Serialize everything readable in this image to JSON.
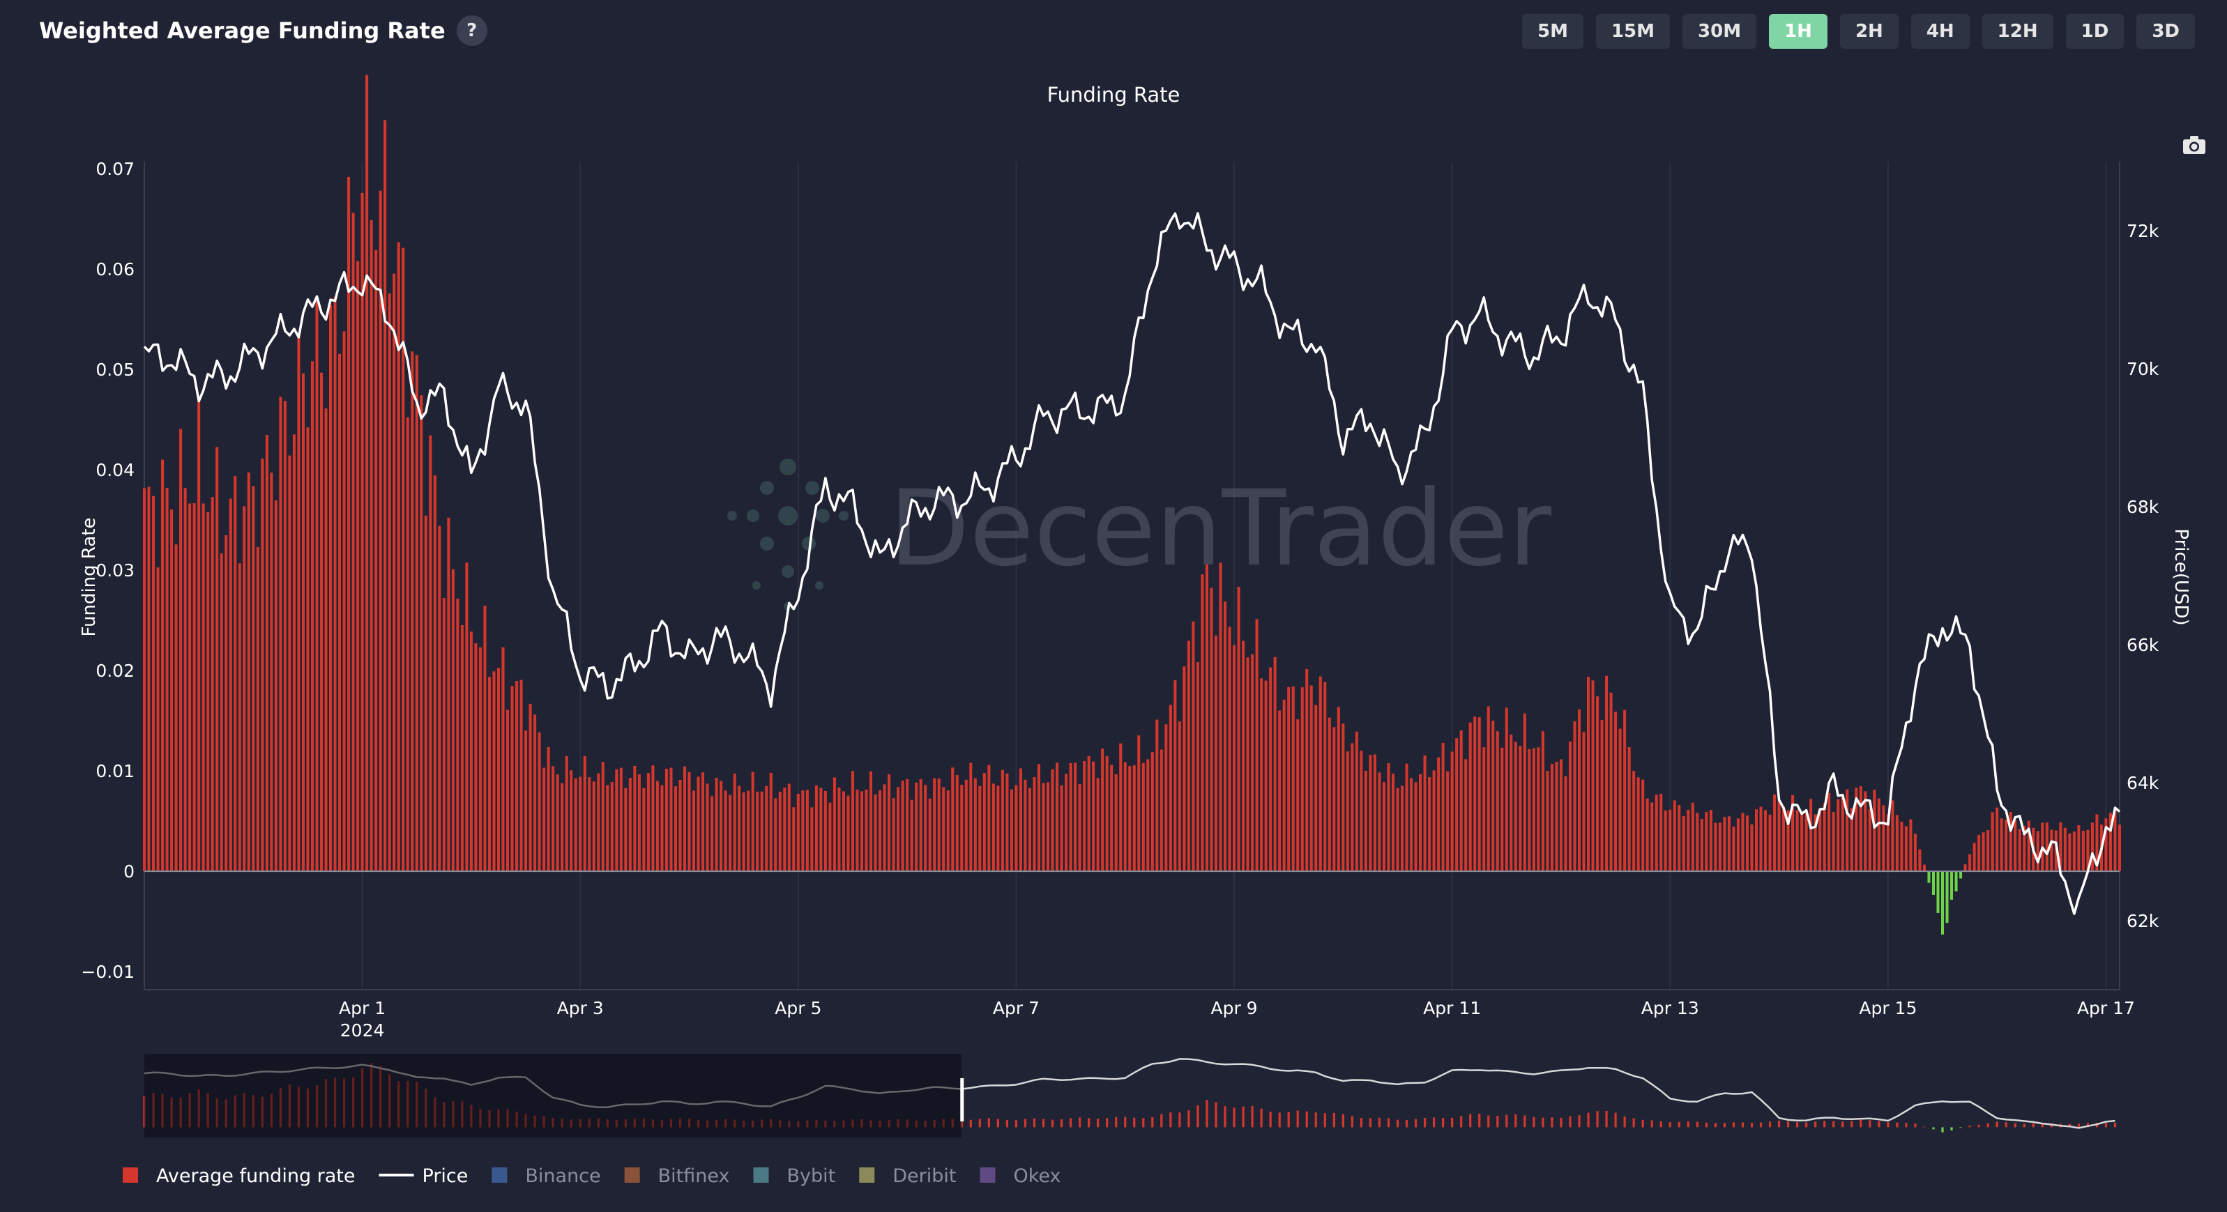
{
  "header": {
    "title": "Weighted Average Funding Rate",
    "help_label": "?"
  },
  "timeframes": [
    {
      "label": "5M",
      "active": false
    },
    {
      "label": "15M",
      "active": false
    },
    {
      "label": "30M",
      "active": false
    },
    {
      "label": "1H",
      "active": true
    },
    {
      "label": "2H",
      "active": false
    },
    {
      "label": "4H",
      "active": false
    },
    {
      "label": "12H",
      "active": false
    },
    {
      "label": "1D",
      "active": false
    },
    {
      "label": "3D",
      "active": false
    }
  ],
  "watermark": "DecenTrader",
  "colors": {
    "bar": "#d6372c",
    "bar_negative": "#6fd34a",
    "price": "#ffffff",
    "background": "#1f2333"
  },
  "chart_data": {
    "type": "bar",
    "title": "Funding Rate",
    "ylabel": "Funding Rate",
    "y2label": "Price(USD)",
    "ylim": [
      -0.0118,
      0.0707
    ],
    "y2lim": [
      61000,
      73000
    ],
    "y_ticks": [
      {
        "value": 0.07,
        "label": "0.07"
      },
      {
        "value": 0.06,
        "label": "0.06"
      },
      {
        "value": 0.05,
        "label": "0.05"
      },
      {
        "value": 0.04,
        "label": "0.04"
      },
      {
        "value": 0.03,
        "label": "0.03"
      },
      {
        "value": 0.02,
        "label": "0.02"
      },
      {
        "value": 0.01,
        "label": "0.01"
      },
      {
        "value": 0,
        "label": "0"
      },
      {
        "value": -0.01,
        "label": "−0.01"
      }
    ],
    "y2_ticks": [
      {
        "value": 72000,
        "label": "72k"
      },
      {
        "value": 70000,
        "label": "70k"
      },
      {
        "value": 68000,
        "label": "68k"
      },
      {
        "value": 66000,
        "label": "66k"
      },
      {
        "value": 64000,
        "label": "64k"
      },
      {
        "value": 62000,
        "label": "62k"
      }
    ],
    "x_range": [
      "2024-03-30 00:00",
      "2024-04-17 03:00"
    ],
    "x_ticks": [
      {
        "date": "2024-04-01",
        "label": "Apr 1",
        "sublabel": "2024"
      },
      {
        "date": "2024-04-03",
        "label": "Apr 3"
      },
      {
        "date": "2024-04-05",
        "label": "Apr 5"
      },
      {
        "date": "2024-04-07",
        "label": "Apr 7"
      },
      {
        "date": "2024-04-09",
        "label": "Apr 9"
      },
      {
        "date": "2024-04-11",
        "label": "Apr 11"
      },
      {
        "date": "2024-04-13",
        "label": "Apr 13"
      },
      {
        "date": "2024-04-15",
        "label": "Apr 15"
      },
      {
        "date": "2024-04-17",
        "label": "Apr 17"
      }
    ],
    "funding_series": {
      "name": "Average funding rate",
      "points": [
        [
          "2024-03-30 00:00",
          0.036
        ],
        [
          "2024-03-30 06:00",
          0.037
        ],
        [
          "2024-03-30 12:00",
          0.04
        ],
        [
          "2024-03-30 18:00",
          0.035
        ],
        [
          "2024-03-31 00:00",
          0.037
        ],
        [
          "2024-03-31 06:00",
          0.043
        ],
        [
          "2024-03-31 12:00",
          0.05
        ],
        [
          "2024-03-31 18:00",
          0.053
        ],
        [
          "2024-04-01 00:00",
          0.07
        ],
        [
          "2024-04-01 06:00",
          0.065
        ],
        [
          "2024-04-01 12:00",
          0.048
        ],
        [
          "2024-04-01 18:00",
          0.032
        ],
        [
          "2024-04-02 00:00",
          0.025
        ],
        [
          "2024-04-02 06:00",
          0.02
        ],
        [
          "2024-04-02 12:00",
          0.017
        ],
        [
          "2024-04-02 18:00",
          0.01
        ],
        [
          "2024-04-03 00:00",
          0.01
        ],
        [
          "2024-04-03 06:00",
          0.0095
        ],
        [
          "2024-04-03 12:00",
          0.0095
        ],
        [
          "2024-04-03 18:00",
          0.0095
        ],
        [
          "2024-04-04 00:00",
          0.0095
        ],
        [
          "2024-04-04 06:00",
          0.0085
        ],
        [
          "2024-04-04 12:00",
          0.0085
        ],
        [
          "2024-04-04 18:00",
          0.0085
        ],
        [
          "2024-04-05 00:00",
          0.0075
        ],
        [
          "2024-04-05 06:00",
          0.008
        ],
        [
          "2024-04-05 12:00",
          0.0085
        ],
        [
          "2024-04-05 18:00",
          0.0085
        ],
        [
          "2024-04-06 00:00",
          0.0085
        ],
        [
          "2024-04-06 06:00",
          0.0085
        ],
        [
          "2024-04-06 12:00",
          0.0095
        ],
        [
          "2024-04-06 18:00",
          0.0095
        ],
        [
          "2024-04-07 00:00",
          0.009
        ],
        [
          "2024-04-07 06:00",
          0.0095
        ],
        [
          "2024-04-07 12:00",
          0.01
        ],
        [
          "2024-04-07 18:00",
          0.011
        ],
        [
          "2024-04-08 00:00",
          0.011
        ],
        [
          "2024-04-08 06:00",
          0.012
        ],
        [
          "2024-04-08 12:00",
          0.018
        ],
        [
          "2024-04-08 18:00",
          0.029
        ],
        [
          "2024-04-09 00:00",
          0.025
        ],
        [
          "2024-04-09 06:00",
          0.021
        ],
        [
          "2024-04-09 12:00",
          0.017
        ],
        [
          "2024-04-09 18:00",
          0.019
        ],
        [
          "2024-04-10 00:00",
          0.014
        ],
        [
          "2024-04-10 06:00",
          0.011
        ],
        [
          "2024-04-10 12:00",
          0.009
        ],
        [
          "2024-04-10 18:00",
          0.01
        ],
        [
          "2024-04-11 00:00",
          0.012
        ],
        [
          "2024-04-11 06:00",
          0.015
        ],
        [
          "2024-04-11 12:00",
          0.014
        ],
        [
          "2024-04-11 18:00",
          0.013
        ],
        [
          "2024-04-12 00:00",
          0.01
        ],
        [
          "2024-04-12 06:00",
          0.018
        ],
        [
          "2024-04-12 12:00",
          0.017
        ],
        [
          "2024-04-12 18:00",
          0.008
        ],
        [
          "2024-04-13 00:00",
          0.0065
        ],
        [
          "2024-04-13 06:00",
          0.006
        ],
        [
          "2024-04-13 12:00",
          0.005
        ],
        [
          "2024-04-13 18:00",
          0.0055
        ],
        [
          "2024-04-14 00:00",
          0.007
        ],
        [
          "2024-04-14 06:00",
          0.006
        ],
        [
          "2024-04-14 12:00",
          0.007
        ],
        [
          "2024-04-14 18:00",
          0.008
        ],
        [
          "2024-04-15 00:00",
          0.0065
        ],
        [
          "2024-04-15 06:00",
          0.004
        ],
        [
          "2024-04-15 12:00",
          -0.006
        ],
        [
          "2024-04-15 18:00",
          0.002
        ],
        [
          "2024-04-16 00:00",
          0.006
        ],
        [
          "2024-04-16 06:00",
          0.0045
        ],
        [
          "2024-04-16 12:00",
          0.0045
        ],
        [
          "2024-04-16 18:00",
          0.004
        ],
        [
          "2024-04-17 00:00",
          0.0055
        ],
        [
          "2024-04-17 03:00",
          0.0055
        ]
      ]
    },
    "price_series": {
      "name": "Price",
      "points": [
        [
          "2024-03-30 00:00",
          70200
        ],
        [
          "2024-03-30 06:00",
          70150
        ],
        [
          "2024-03-30 12:00",
          69800
        ],
        [
          "2024-03-30 18:00",
          69900
        ],
        [
          "2024-03-31 00:00",
          70200
        ],
        [
          "2024-03-31 06:00",
          70500
        ],
        [
          "2024-03-31 12:00",
          70800
        ],
        [
          "2024-03-31 18:00",
          71050
        ],
        [
          "2024-04-01 00:00",
          71300
        ],
        [
          "2024-04-01 06:00",
          70800
        ],
        [
          "2024-04-01 12:00",
          69500
        ],
        [
          "2024-04-01 18:00",
          69600
        ],
        [
          "2024-04-02 00:00",
          68400
        ],
        [
          "2024-04-02 06:00",
          69700
        ],
        [
          "2024-04-02 12:00",
          69500
        ],
        [
          "2024-04-02 18:00",
          66800
        ],
        [
          "2024-04-03 00:00",
          65600
        ],
        [
          "2024-04-03 06:00",
          65400
        ],
        [
          "2024-04-03 12:00",
          65700
        ],
        [
          "2024-04-03 18:00",
          66200
        ],
        [
          "2024-04-04 00:00",
          65800
        ],
        [
          "2024-04-04 06:00",
          66100
        ],
        [
          "2024-04-04 12:00",
          65900
        ],
        [
          "2024-04-04 18:00",
          65400
        ],
        [
          "2024-04-05 00:00",
          66800
        ],
        [
          "2024-04-05 06:00",
          68300
        ],
        [
          "2024-04-05 12:00",
          68000
        ],
        [
          "2024-04-05 18:00",
          67200
        ],
        [
          "2024-04-06 00:00",
          67800
        ],
        [
          "2024-04-06 06:00",
          68100
        ],
        [
          "2024-04-06 12:00",
          68100
        ],
        [
          "2024-04-06 18:00",
          68300
        ],
        [
          "2024-04-07 00:00",
          68700
        ],
        [
          "2024-04-07 06:00",
          69300
        ],
        [
          "2024-04-07 12:00",
          69400
        ],
        [
          "2024-04-07 18:00",
          69400
        ],
        [
          "2024-04-08 00:00",
          69600
        ],
        [
          "2024-04-08 06:00",
          71500
        ],
        [
          "2024-04-08 12:00",
          72300
        ],
        [
          "2024-04-08 18:00",
          71800
        ],
        [
          "2024-04-09 00:00",
          71500
        ],
        [
          "2024-04-09 06:00",
          71200
        ],
        [
          "2024-04-09 12:00",
          70500
        ],
        [
          "2024-04-09 18:00",
          70400
        ],
        [
          "2024-04-10 00:00",
          69000
        ],
        [
          "2024-04-10 06:00",
          69300
        ],
        [
          "2024-04-10 12:00",
          68500
        ],
        [
          "2024-04-10 18:00",
          69000
        ],
        [
          "2024-04-11 00:00",
          70500
        ],
        [
          "2024-04-11 06:00",
          70800
        ],
        [
          "2024-04-11 12:00",
          70400
        ],
        [
          "2024-04-11 18:00",
          70200
        ],
        [
          "2024-04-12 00:00",
          70500
        ],
        [
          "2024-04-12 06:00",
          71100
        ],
        [
          "2024-04-12 12:00",
          70700
        ],
        [
          "2024-04-12 18:00",
          69600
        ],
        [
          "2024-04-13 00:00",
          66500
        ],
        [
          "2024-04-13 06:00",
          66200
        ],
        [
          "2024-04-13 12:00",
          67300
        ],
        [
          "2024-04-13 18:00",
          67500
        ],
        [
          "2024-04-14 00:00",
          63800
        ],
        [
          "2024-04-14 06:00",
          63400
        ],
        [
          "2024-04-14 12:00",
          63900
        ],
        [
          "2024-04-14 18:00",
          63600
        ],
        [
          "2024-04-15 00:00",
          63500
        ],
        [
          "2024-04-15 06:00",
          65500
        ],
        [
          "2024-04-15 12:00",
          66300
        ],
        [
          "2024-04-15 18:00",
          66000
        ],
        [
          "2024-04-16 00:00",
          63900
        ],
        [
          "2024-04-16 06:00",
          63200
        ],
        [
          "2024-04-16 12:00",
          63000
        ],
        [
          "2024-04-16 18:00",
          62200
        ],
        [
          "2024-04-17 00:00",
          63400
        ],
        [
          "2024-04-17 03:00",
          63400
        ]
      ]
    },
    "legend": {
      "position": "bottom-left",
      "entries": [
        {
          "name": "Average funding rate",
          "color": "#d6372c",
          "shape": "square"
        },
        {
          "name": "Price",
          "color": "#ffffff",
          "shape": "line"
        },
        {
          "name": "Binance",
          "color": "#3a5a8f",
          "shape": "square"
        },
        {
          "name": "Bitfinex",
          "color": "#8a5239",
          "shape": "square"
        },
        {
          "name": "Bybit",
          "color": "#4b7a84",
          "shape": "square"
        },
        {
          "name": "Deribit",
          "color": "#8a8a5a",
          "shape": "square"
        },
        {
          "name": "Okex",
          "color": "#5f4a84",
          "shape": "square"
        }
      ]
    },
    "range_selector": {
      "selected": [
        "2024-03-30 00:00",
        "2024-04-06 12:00"
      ]
    },
    "grid": true
  }
}
